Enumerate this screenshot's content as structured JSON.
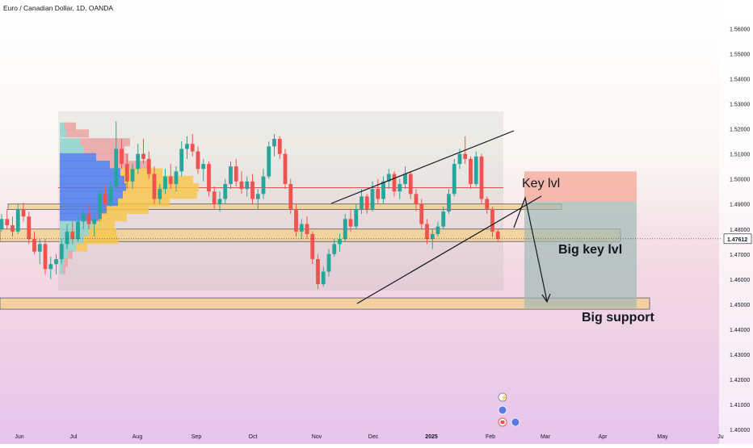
{
  "header": {
    "title": "Euro / Canadian Dollar, 1D, OANDA"
  },
  "chart_data": {
    "type": "candlestick",
    "title": "Euro / Canadian Dollar, 1D, OANDA",
    "xlabel": "",
    "ylabel": "",
    "ylim": [
      1.4,
      1.565
    ],
    "y_ticks": [
      "1.56000",
      "1.55000",
      "1.54000",
      "1.53000",
      "1.52000",
      "1.51000",
      "1.50000",
      "1.49000",
      "1.48000",
      "1.47000",
      "1.46000",
      "1.45000",
      "1.44000",
      "1.43000",
      "1.42000",
      "1.41000",
      "1.40000"
    ],
    "x_ticks": [
      "Jun",
      "Jul",
      "Aug",
      "Sep",
      "Oct",
      "Nov",
      "Dec",
      "2025",
      "Feb",
      "Mar",
      "Apr",
      "May",
      "Ju"
    ],
    "last_price": {
      "label": "1.47612",
      "value": 1.47612
    },
    "annotations": [
      {
        "text": "Key lvl",
        "value": 1.4965
      },
      {
        "text": "Big key lvl",
        "value": 1.4693
      },
      {
        "text": "Big support",
        "value": 1.4425
      }
    ],
    "zones": [
      {
        "name": "key-level-zone",
        "from": 1.4878,
        "to": 1.49,
        "color": "#f5d08a"
      },
      {
        "name": "big-key-level-zone",
        "from": 1.475,
        "to": 1.48,
        "color": "#f5d08a"
      },
      {
        "name": "big-support-zone",
        "from": 1.448,
        "to": 1.4525,
        "color": "#f5d08a"
      },
      {
        "name": "target-profit-zone",
        "from": 1.4485,
        "to": 1.491,
        "color": "#9fb9b5"
      },
      {
        "name": "stop-loss-zone",
        "from": 1.491,
        "to": 1.503,
        "color": "#f3a393"
      }
    ],
    "reference_line": {
      "value": 1.4965,
      "color": "#d9534f"
    },
    "pattern": "rising wedge",
    "colors": {
      "up": "#26a69a",
      "down": "#ef5350",
      "zone": "#f5d08a",
      "profit": "#9fb9b5",
      "loss": "#f3a393"
    },
    "volume_profile": {
      "rows": [
        {
          "price": 1.5208,
          "green": 5,
          "red": 15
        },
        {
          "price": 1.518,
          "green": 8,
          "red": 28
        },
        {
          "price": 1.5145,
          "green": 25,
          "red": 62
        },
        {
          "price": 1.5115,
          "green": 30,
          "red": 50
        },
        {
          "price": 1.5085,
          "green": 45,
          "red": 40
        },
        {
          "price": 1.5055,
          "green": 62,
          "red": 50
        },
        {
          "price": 1.5025,
          "green": 75,
          "red": 52
        },
        {
          "price": 1.4995,
          "green": 80,
          "red": 85
        },
        {
          "price": 1.4965,
          "green": 82,
          "red": 90
        },
        {
          "price": 1.4935,
          "green": 78,
          "red": 92
        },
        {
          "price": 1.4905,
          "green": 72,
          "red": 64
        },
        {
          "price": 1.4875,
          "green": 58,
          "red": 52
        },
        {
          "price": 1.4845,
          "green": 48,
          "red": 35
        },
        {
          "price": 1.4815,
          "green": 40,
          "red": 28
        },
        {
          "price": 1.4785,
          "green": 36,
          "red": 34
        },
        {
          "price": 1.4755,
          "green": 30,
          "red": 42
        },
        {
          "price": 1.4725,
          "green": 20,
          "red": 14
        },
        {
          "price": 1.4695,
          "green": 10,
          "red": 6
        },
        {
          "price": 1.4665,
          "green": 6,
          "red": 4
        },
        {
          "price": 1.4635,
          "green": 4,
          "red": 3
        }
      ]
    },
    "candles": [
      [
        1.48,
        1.486,
        1.479,
        1.484
      ],
      [
        1.484,
        1.488,
        1.48,
        1.4815
      ],
      [
        1.4815,
        1.485,
        1.477,
        1.479
      ],
      [
        1.479,
        1.49,
        1.478,
        1.488
      ],
      [
        1.488,
        1.4905,
        1.483,
        1.485
      ],
      [
        1.485,
        1.487,
        1.474,
        1.476
      ],
      [
        1.476,
        1.479,
        1.47,
        1.471
      ],
      [
        1.471,
        1.476,
        1.466,
        1.474
      ],
      [
        1.474,
        1.476,
        1.462,
        1.464
      ],
      [
        1.464,
        1.469,
        1.46,
        1.466
      ],
      [
        1.466,
        1.47,
        1.462,
        1.468
      ],
      [
        1.468,
        1.476,
        1.466,
        1.474
      ],
      [
        1.474,
        1.482,
        1.472,
        1.479
      ],
      [
        1.479,
        1.483,
        1.474,
        1.476
      ],
      [
        1.476,
        1.485,
        1.475,
        1.483
      ],
      [
        1.483,
        1.488,
        1.48,
        1.486
      ],
      [
        1.486,
        1.49,
        1.48,
        1.482
      ],
      [
        1.482,
        1.486,
        1.477,
        1.484
      ],
      [
        1.484,
        1.496,
        1.483,
        1.494
      ],
      [
        1.494,
        1.498,
        1.488,
        1.49
      ],
      [
        1.49,
        1.499,
        1.489,
        1.497
      ],
      [
        1.497,
        1.523,
        1.495,
        1.512
      ],
      [
        1.512,
        1.516,
        1.504,
        1.506
      ],
      [
        1.506,
        1.51,
        1.496,
        1.499
      ],
      [
        1.499,
        1.506,
        1.496,
        1.504
      ],
      [
        1.504,
        1.514,
        1.502,
        1.51
      ],
      [
        1.51,
        1.516,
        1.506,
        1.508
      ],
      [
        1.508,
        1.511,
        1.5,
        1.502
      ],
      [
        1.502,
        1.505,
        1.49,
        1.492
      ],
      [
        1.492,
        1.498,
        1.49,
        1.496
      ],
      [
        1.496,
        1.504,
        1.494,
        1.501
      ],
      [
        1.501,
        1.506,
        1.496,
        1.498
      ],
      [
        1.498,
        1.505,
        1.495,
        1.503
      ],
      [
        1.503,
        1.515,
        1.501,
        1.512
      ],
      [
        1.512,
        1.517,
        1.508,
        1.514
      ],
      [
        1.514,
        1.518,
        1.509,
        1.511
      ],
      [
        1.511,
        1.513,
        1.502,
        1.504
      ],
      [
        1.504,
        1.508,
        1.499,
        1.506
      ],
      [
        1.506,
        1.507,
        1.493,
        1.495
      ],
      [
        1.495,
        1.497,
        1.488,
        1.49
      ],
      [
        1.49,
        1.495,
        1.487,
        1.492
      ],
      [
        1.492,
        1.5,
        1.49,
        1.498
      ],
      [
        1.498,
        1.507,
        1.496,
        1.505
      ],
      [
        1.505,
        1.508,
        1.497,
        1.499
      ],
      [
        1.499,
        1.503,
        1.494,
        1.496
      ],
      [
        1.496,
        1.501,
        1.493,
        1.499
      ],
      [
        1.499,
        1.502,
        1.49,
        1.492
      ],
      [
        1.492,
        1.496,
        1.488,
        1.494
      ],
      [
        1.494,
        1.504,
        1.492,
        1.501
      ],
      [
        1.501,
        1.515,
        1.5,
        1.513
      ],
      [
        1.513,
        1.518,
        1.509,
        1.516
      ],
      [
        1.516,
        1.517,
        1.508,
        1.51
      ],
      [
        1.51,
        1.512,
        1.496,
        1.498
      ],
      [
        1.498,
        1.5,
        1.486,
        1.488
      ],
      [
        1.488,
        1.49,
        1.477,
        1.479
      ],
      [
        1.479,
        1.484,
        1.476,
        1.482
      ],
      [
        1.482,
        1.485,
        1.476,
        1.478
      ],
      [
        1.478,
        1.479,
        1.466,
        1.468
      ],
      [
        1.468,
        1.47,
        1.456,
        1.458
      ],
      [
        1.458,
        1.465,
        1.457,
        1.463
      ],
      [
        1.463,
        1.472,
        1.461,
        1.47
      ],
      [
        1.47,
        1.476,
        1.469,
        1.474
      ],
      [
        1.474,
        1.478,
        1.471,
        1.476
      ],
      [
        1.476,
        1.486,
        1.475,
        1.484
      ],
      [
        1.484,
        1.488,
        1.479,
        1.481
      ],
      [
        1.481,
        1.49,
        1.48,
        1.488
      ],
      [
        1.488,
        1.496,
        1.486,
        1.493
      ],
      [
        1.493,
        1.494,
        1.486,
        1.488
      ],
      [
        1.488,
        1.499,
        1.487,
        1.496
      ],
      [
        1.496,
        1.5,
        1.49,
        1.492
      ],
      [
        1.492,
        1.501,
        1.49,
        1.499
      ],
      [
        1.499,
        1.504,
        1.496,
        1.502
      ],
      [
        1.502,
        1.503,
        1.493,
        1.495
      ],
      [
        1.495,
        1.5,
        1.492,
        1.498
      ],
      [
        1.498,
        1.505,
        1.496,
        1.502
      ],
      [
        1.502,
        1.503,
        1.492,
        1.494
      ],
      [
        1.494,
        1.496,
        1.487,
        1.49
      ],
      [
        1.49,
        1.492,
        1.48,
        1.482
      ],
      [
        1.482,
        1.484,
        1.474,
        1.476
      ],
      [
        1.476,
        1.48,
        1.472,
        1.478
      ],
      [
        1.478,
        1.483,
        1.477,
        1.481
      ],
      [
        1.481,
        1.489,
        1.48,
        1.487
      ],
      [
        1.487,
        1.496,
        1.486,
        1.494
      ],
      [
        1.494,
        1.508,
        1.493,
        1.506
      ],
      [
        1.506,
        1.512,
        1.504,
        1.51
      ],
      [
        1.51,
        1.517,
        1.506,
        1.508
      ],
      [
        1.508,
        1.509,
        1.496,
        1.498
      ],
      [
        1.498,
        1.511,
        1.497,
        1.509
      ],
      [
        1.509,
        1.51,
        1.49,
        1.492
      ],
      [
        1.492,
        1.493,
        1.486,
        1.488
      ],
      [
        1.488,
        1.489,
        1.477,
        1.479
      ],
      [
        1.479,
        1.48,
        1.475,
        1.4761
      ]
    ]
  }
}
